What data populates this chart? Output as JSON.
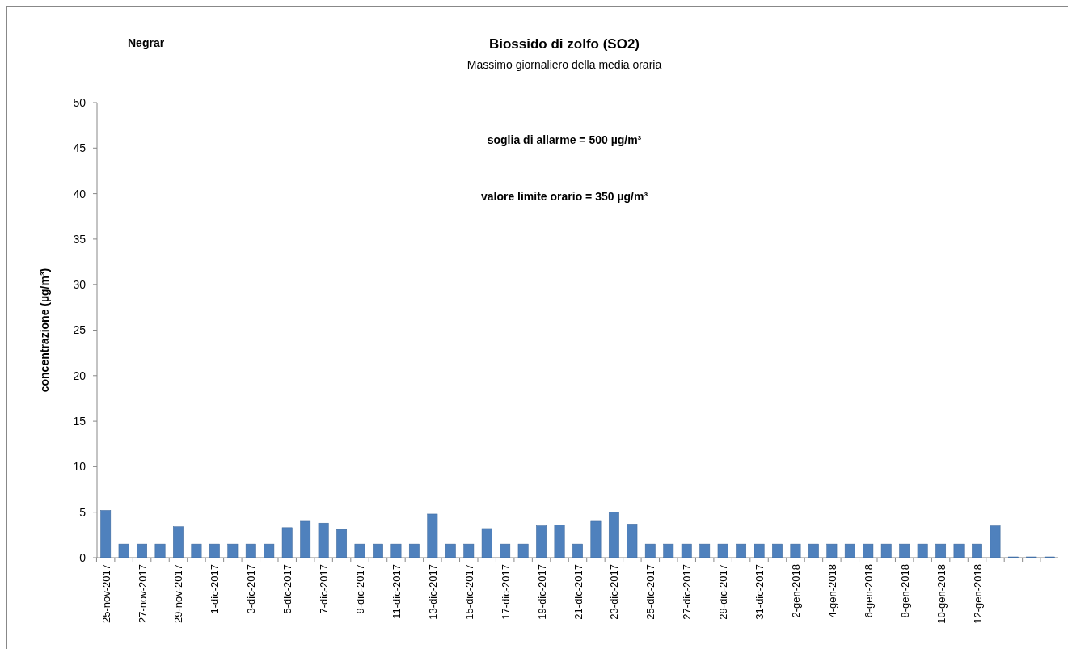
{
  "chart_data": {
    "type": "bar",
    "title": "Biossido di zolfo (SO2)",
    "subtitle": "Massimo giornaliero della media oraria",
    "ylabel": "concentrazione (µg/m³)",
    "annotations": [
      "Negrar",
      "soglia di allarme = 500 µg/m³",
      "valore limite orario = 350 µg/m³"
    ],
    "categories": [
      "25-nov-2017",
      null,
      "27-nov-2017",
      null,
      "29-nov-2017",
      null,
      "1-dic-2017",
      null,
      "3-dic-2017",
      null,
      "5-dic-2017",
      null,
      "7-dic-2017",
      null,
      "9-dic-2017",
      null,
      "11-dic-2017",
      null,
      "13-dic-2017",
      null,
      "15-dic-2017",
      null,
      "17-dic-2017",
      null,
      "19-dic-2017",
      null,
      "21-dic-2017",
      null,
      "23-dic-2017",
      null,
      "25-dic-2017",
      null,
      "27-dic-2017",
      null,
      "29-dic-2017",
      null,
      "31-dic-2017",
      null,
      "2-gen-2018",
      null,
      "4-gen-2018",
      null,
      "6-gen-2018",
      null,
      "8-gen-2018",
      null,
      "10-gen-2018",
      null,
      "12-gen-2018",
      null,
      null,
      null,
      null
    ],
    "values": [
      5.2,
      1.5,
      1.5,
      1.5,
      3.4,
      1.5,
      1.5,
      1.5,
      1.5,
      1.5,
      3.3,
      4.0,
      3.8,
      3.1,
      1.5,
      1.5,
      1.5,
      1.5,
      4.8,
      1.5,
      1.5,
      3.2,
      1.5,
      1.5,
      3.5,
      3.6,
      1.5,
      4.0,
      5.0,
      3.7,
      1.5,
      1.5,
      1.5,
      1.5,
      1.5,
      1.5,
      1.5,
      1.5,
      1.5,
      1.5,
      1.5,
      1.5,
      1.5,
      1.5,
      1.5,
      1.5,
      1.5,
      1.5,
      1.5,
      3.5,
      0,
      0,
      0
    ],
    "color": "#4f81bd",
    "ylim": [
      0,
      50
    ],
    "yticks": [
      0,
      5,
      10,
      15,
      20,
      25,
      30,
      35,
      40,
      45,
      50
    ]
  }
}
